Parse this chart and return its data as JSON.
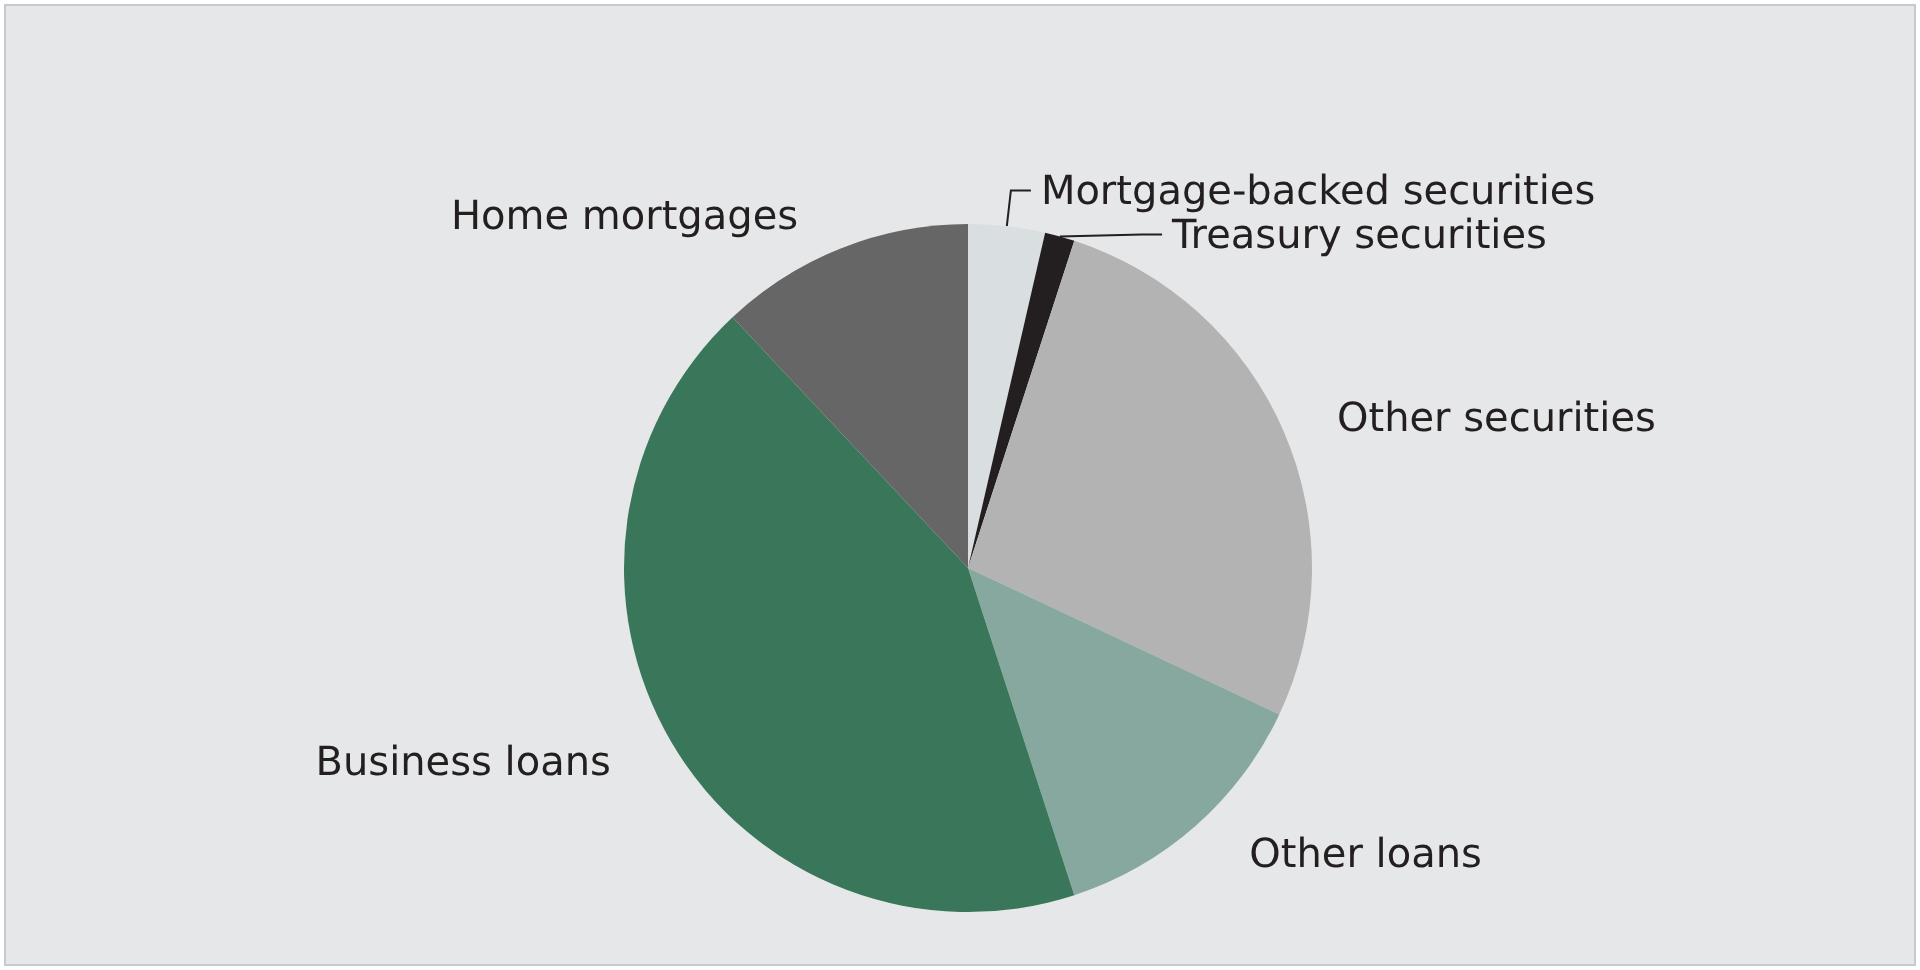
{
  "chart_data": {
    "type": "pie",
    "categories": [
      "Mortgage-backed securities",
      "Treasury securities",
      "Other securities",
      "Other loans",
      "Business loans",
      "Home mortgages"
    ],
    "values": [
      3.6,
      1.4,
      27,
      13,
      43,
      12
    ],
    "colors": [
      "#d9dfe1",
      "#231f20",
      "#b3b3b3",
      "#87a89f",
      "#3a7659",
      "#666666"
    ],
    "legend": false
  }
}
